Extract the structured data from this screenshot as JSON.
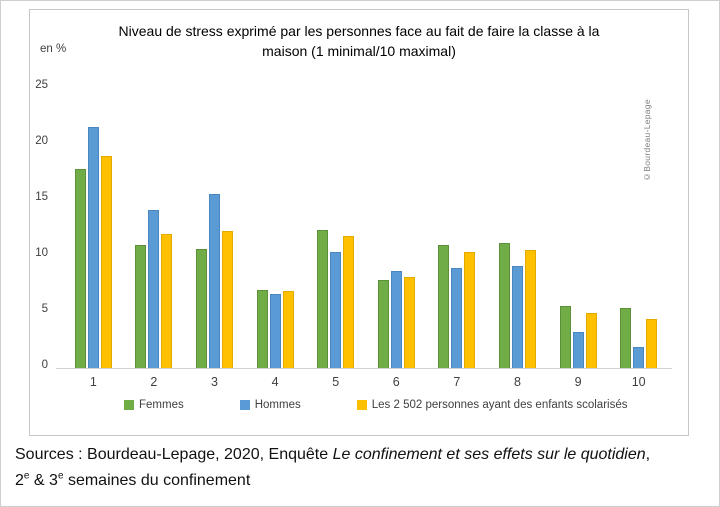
{
  "chart_data": {
    "type": "bar",
    "title": "Niveau de stress exprimé par les personnes face au fait de faire la classe à la maison (1 minimal/10 maximal)",
    "y_unit_label": "en %",
    "xlabel": "",
    "ylabel": "en %",
    "categories": [
      "1",
      "2",
      "3",
      "4",
      "5",
      "6",
      "7",
      "8",
      "9",
      "10"
    ],
    "series": [
      {
        "name": "Femmes",
        "color": "#70AD47",
        "border_color": "#5d9139",
        "values": [
          17.8,
          11.0,
          10.6,
          7.0,
          12.3,
          7.9,
          11.0,
          11.2,
          5.5,
          5.4
        ]
      },
      {
        "name": "Hommes",
        "color": "#5B9BD5",
        "border_color": "#4a86c0",
        "values": [
          21.5,
          14.1,
          15.5,
          6.6,
          10.4,
          8.7,
          8.9,
          9.1,
          3.2,
          1.9
        ]
      },
      {
        "name": "Les 2 502 personnes ayant des enfants scolarisés",
        "color": "#FFC000",
        "border_color": "#e3ab00",
        "values": [
          18.9,
          12.0,
          12.2,
          6.9,
          11.8,
          8.1,
          10.4,
          10.5,
          4.9,
          4.4
        ]
      }
    ],
    "y_ticks": [
      0,
      5,
      10,
      15,
      20,
      25
    ],
    "ylim": [
      0,
      25
    ],
    "grid": false,
    "legend_position": "bottom"
  },
  "watermark": "©Bourdeau-Lepage",
  "sources": {
    "line1_prefix": "Sources : Bourdeau-Lepage, 2020, Enquête ",
    "line1_italic": "Le confinement et ses effets sur le quotidien",
    "line1_suffix": ",",
    "line2_num1": "2",
    "line2_sup1": "e",
    "line2_mid": " & 3",
    "line2_sup2": "e",
    "line2_end": " semaines du confinement"
  }
}
